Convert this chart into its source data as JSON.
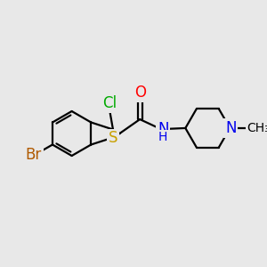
{
  "background_color": "#e8e8e8",
  "bond_color": "#000000",
  "atom_colors": {
    "Br": "#b05a00",
    "S": "#c8a000",
    "Cl": "#00aa00",
    "O": "#ff0000",
    "N": "#0000ee",
    "C": "#000000"
  },
  "font_size_atoms": 12,
  "font_size_small": 10
}
